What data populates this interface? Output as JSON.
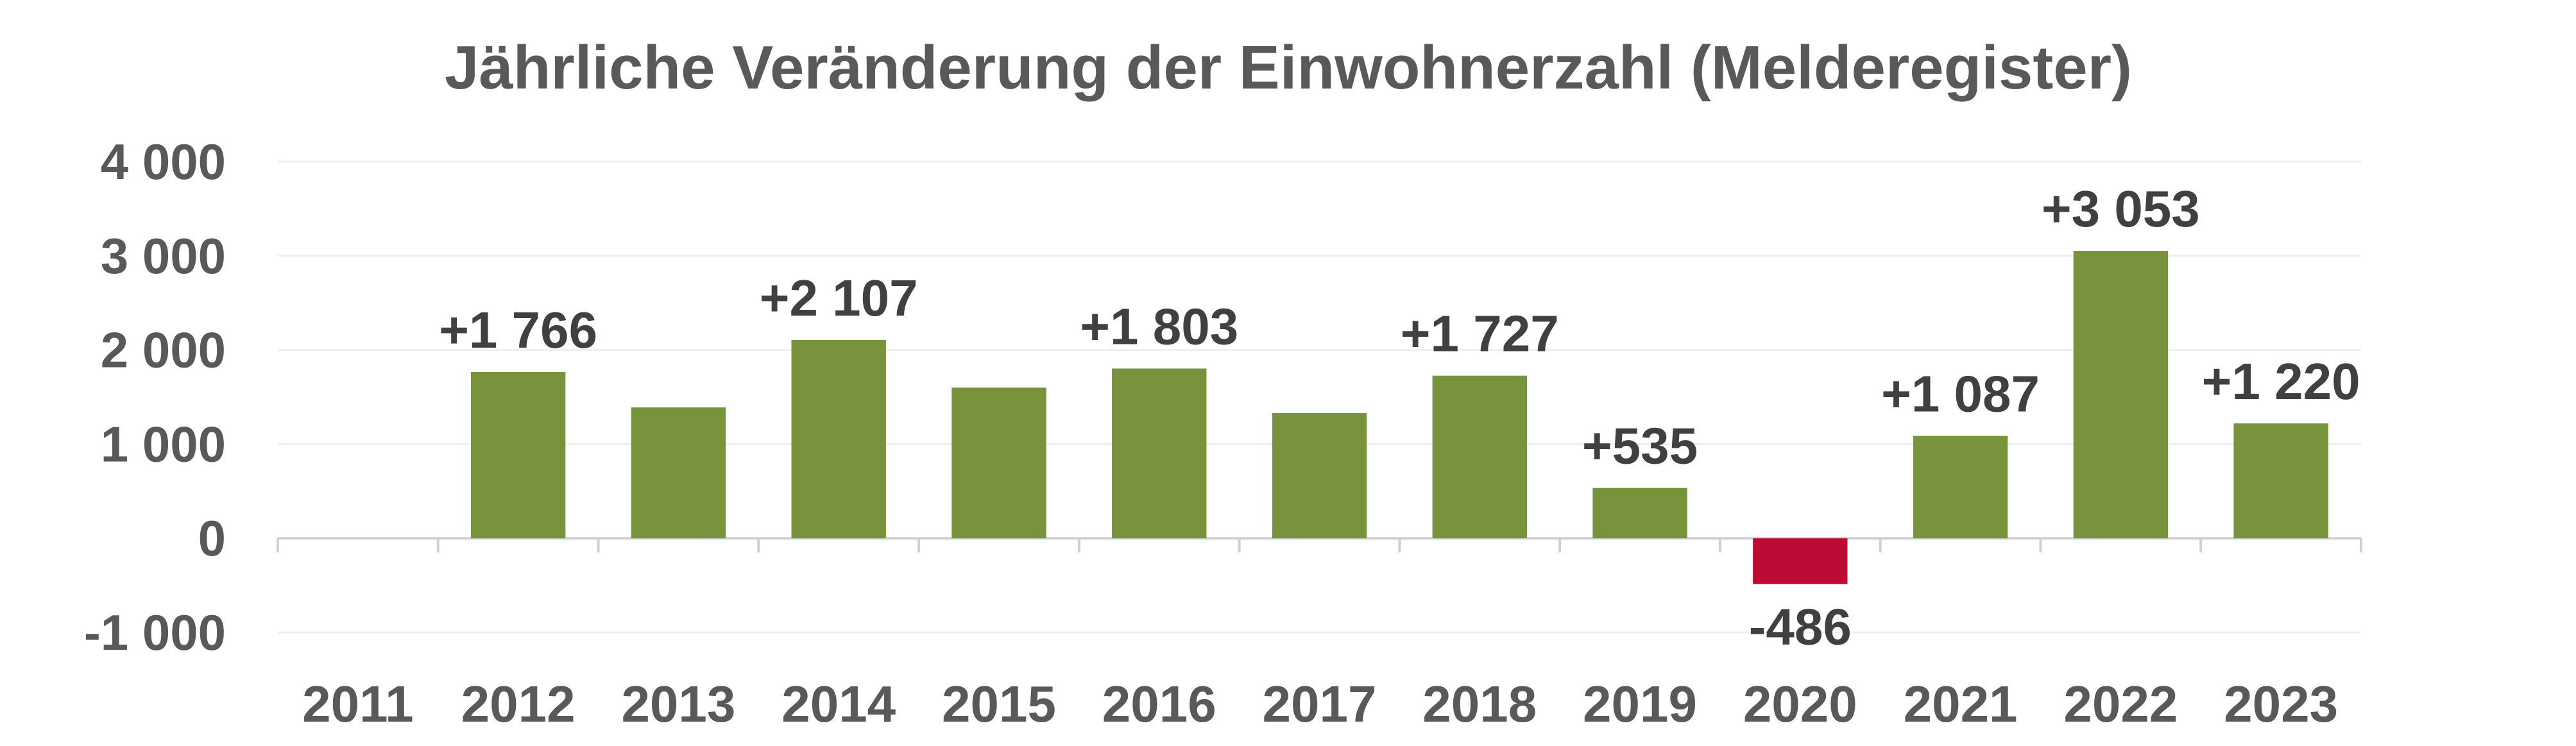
{
  "chart_data": {
    "type": "bar",
    "title": "Jährliche Veränderung der Einwohnerzahl (Melderegister)",
    "categories": [
      "2011",
      "2012",
      "2013",
      "2014",
      "2015",
      "2016",
      "2017",
      "2018",
      "2019",
      "2020",
      "2021",
      "2022",
      "2023"
    ],
    "values": [
      null,
      1766,
      1390,
      2107,
      1600,
      1803,
      1330,
      1727,
      535,
      -486,
      1087,
      3053,
      1220
    ],
    "data_labels": [
      "",
      "+1 766",
      "",
      "+2 107",
      "",
      "+1 803",
      "",
      "+1 727",
      "+535",
      "-486",
      "+1 087",
      "+3 053",
      "+1 220"
    ],
    "ylim": [
      -1000,
      4000
    ],
    "yticks": [
      4000,
      3000,
      2000,
      1000,
      0,
      -1000
    ],
    "ytick_labels": [
      "4 000",
      "3 000",
      "2 000",
      "1 000",
      "0",
      "-1 000"
    ],
    "xlabel": "",
    "ylabel": "",
    "grid": true,
    "legend": "none",
    "colors": {
      "positive": "#77933c",
      "negative": "#be0b36",
      "grid": "#efefef",
      "axis": "#d0d0d0",
      "text": "#595959",
      "label": "#404040"
    }
  }
}
